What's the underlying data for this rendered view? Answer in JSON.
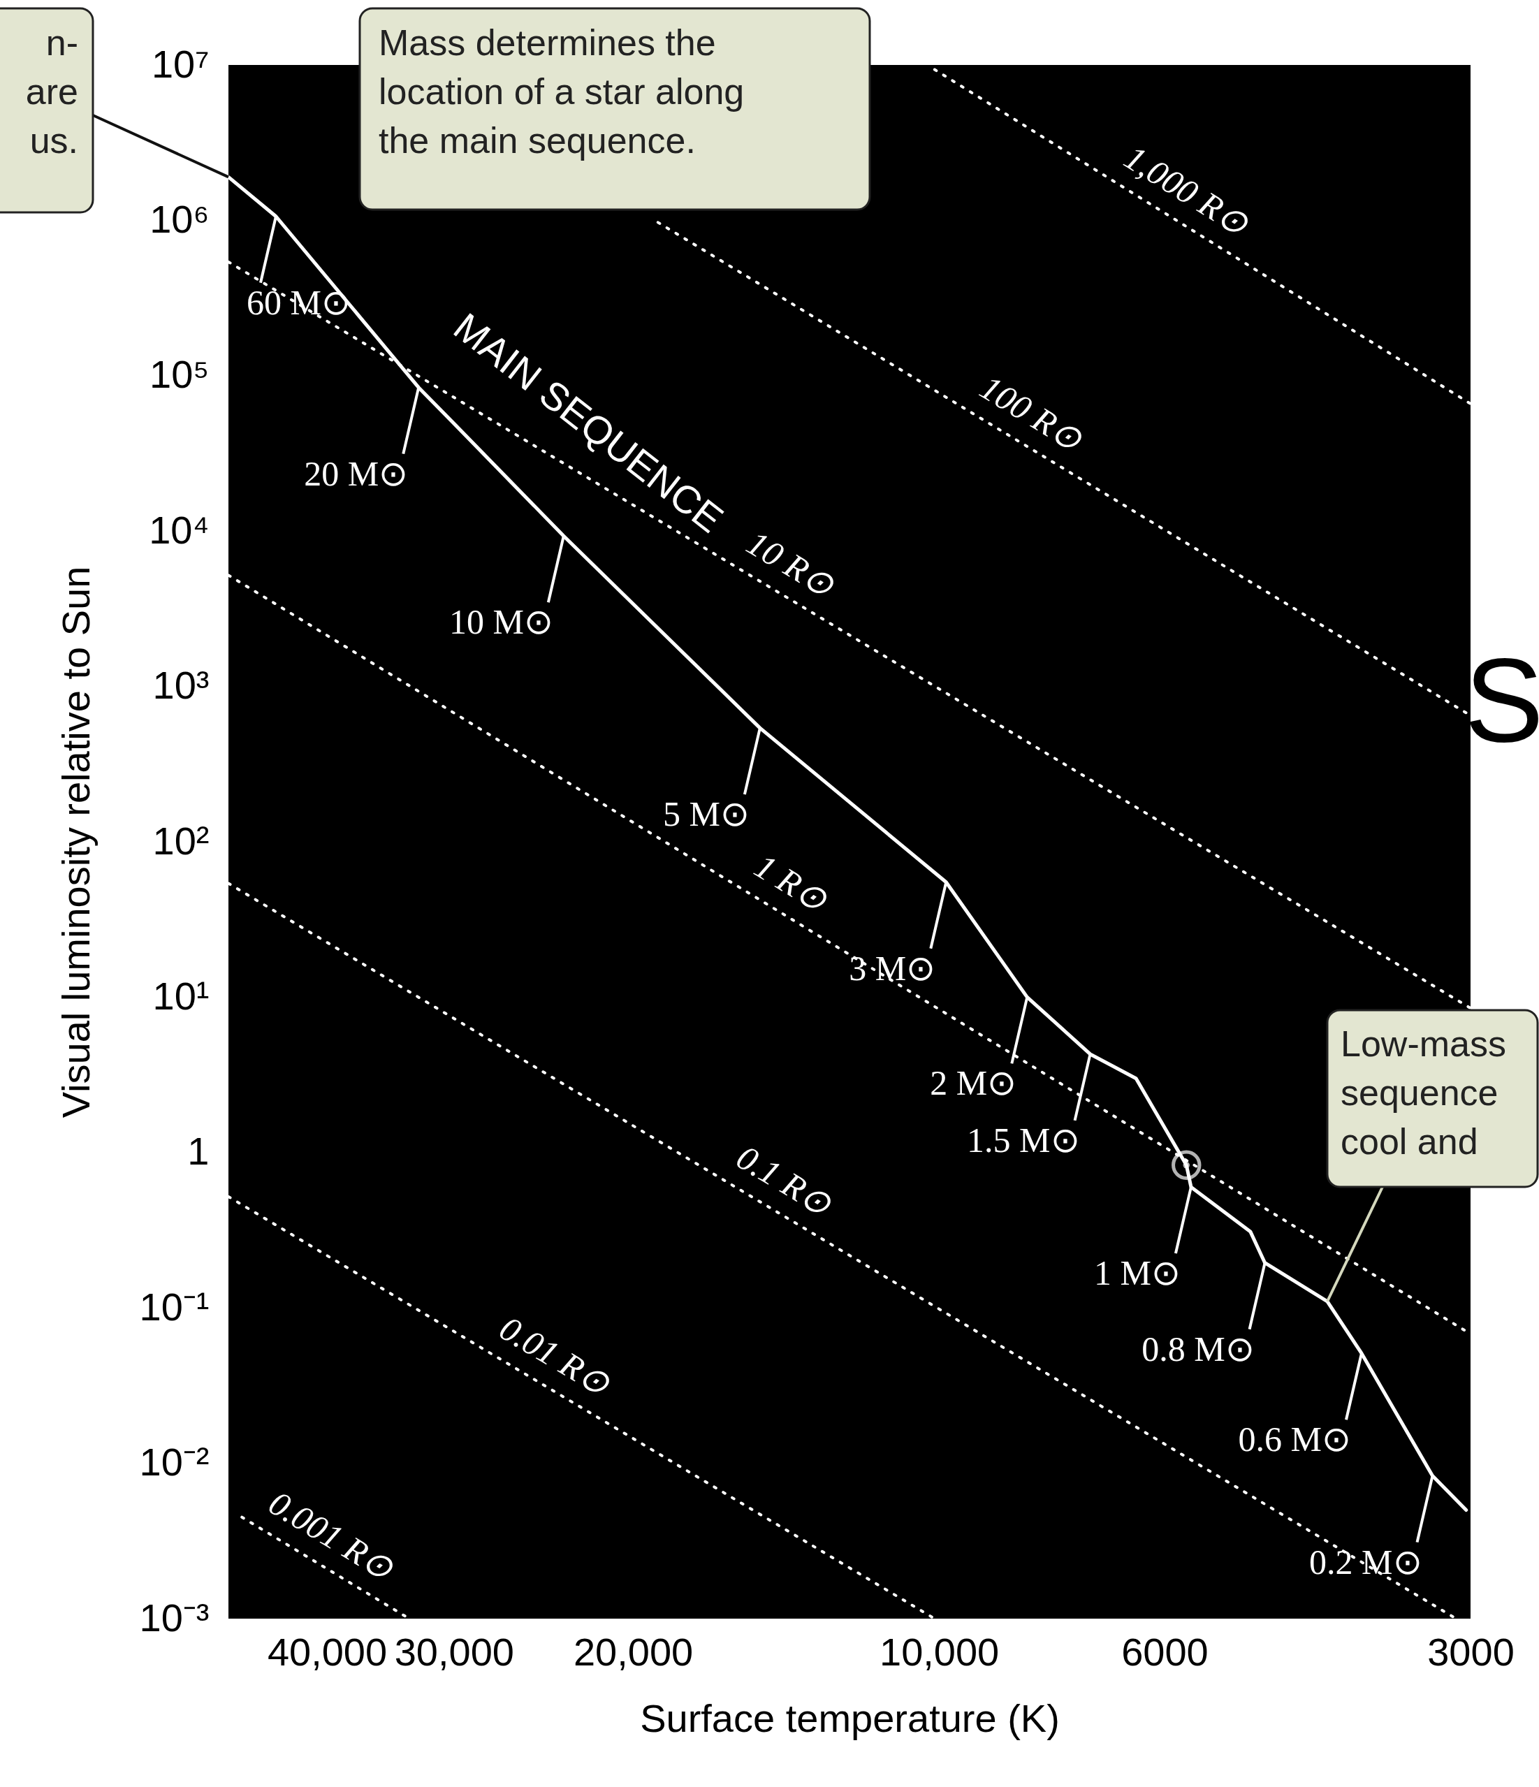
{
  "chart_data": {
    "type": "line",
    "xlabel": "Surface temperature (K)",
    "ylabel": "Visual luminosity relative to Sun",
    "log": "xy",
    "xlim": [
      50000,
      3000
    ],
    "ylim": [
      0.001,
      10000000
    ],
    "xticks": [
      {
        "value": 40000,
        "label": "40,000"
      },
      {
        "value": 30000,
        "label": "30,000"
      },
      {
        "value": 20000,
        "label": "20,000"
      },
      {
        "value": 10000,
        "label": "10,000"
      },
      6000,
      3000
    ],
    "yticks": [
      {
        "value": 0.001,
        "label": "10⁻³"
      },
      {
        "value": 0.01,
        "label": "10⁻²"
      },
      {
        "value": 0.1,
        "label": "10⁻¹"
      },
      1,
      {
        "value": 10,
        "label": "10¹"
      },
      {
        "value": 100,
        "label": "10²"
      },
      {
        "value": 1000,
        "label": "10³"
      },
      {
        "value": 10000,
        "label": "10⁴"
      },
      {
        "value": 100000,
        "label": "10⁵"
      },
      {
        "value": 1000000,
        "label": "10⁶"
      },
      {
        "value": 10000000,
        "label": "10⁷"
      }
    ],
    "grid": false,
    "series": [
      {
        "color": "#ffffff",
        "line_style": "solid",
        "x": [
          50000,
          44900,
          32500,
          29700,
          23400,
          15000,
          9840,
          8190,
          7100,
          6400,
          5710,
          5650,
          4940,
          4780,
          4150,
          3840,
          3270,
          3030
        ],
        "values": [
          1900000,
          1060000,
          84000,
          46000,
          9300,
          540,
          55,
          10,
          4.3,
          3,
          0.83,
          0.6,
          0.31,
          0.195,
          0.11,
          0.051,
          0.0083,
          0.005
        ]
      },
      {
        "type": "scatter",
        "color": "#ffffff",
        "marker": "circle",
        "x": [
          5710
        ],
        "values": [
          0.83
        ]
      },
      {
        "name": "1,000 R⊙",
        "color": "#ffffff",
        "line_style": "dotted",
        "x": [
          10100,
          3000
        ],
        "values": [
          9350000,
          66000
        ]
      },
      {
        "name": "100 R⊙",
        "color": "#ffffff",
        "line_style": "dotted",
        "x": [
          18900,
          3000
        ],
        "values": [
          970000,
          650
        ]
      },
      {
        "name": "10 R⊙",
        "color": "#ffffff",
        "line_style": "dotted",
        "x": [
          50000,
          3000
        ],
        "values": [
          540000,
          8.5
        ]
      },
      {
        "name": "1 R⊙",
        "color": "#ffffff",
        "line_style": "dotted",
        "x": [
          50000,
          3000
        ],
        "values": [
          5200,
          0.068
        ]
      },
      {
        "name": "0.1 R⊙",
        "color": "#ffffff",
        "line_style": "dotted",
        "x": [
          50000,
          3100
        ],
        "values": [
          54,
          0.001
        ]
      },
      {
        "name": "0.01 R⊙",
        "color": "#ffffff",
        "line_style": "dotted",
        "x": [
          50000,
          10100
        ],
        "values": [
          0.52,
          0.001
        ]
      },
      {
        "name": "0.001 R⊙",
        "color": "#ffffff",
        "line_style": "dotted",
        "x": [
          48500,
          33200
        ],
        "values": [
          0.0045,
          0.001
        ]
      }
    ],
    "annotations": [
      {
        "text": "n-\nare\nus.",
        "x": 50000,
        "y": 1900000
      },
      "Mass determines the\nlocation of a star along\nthe main sequence.",
      "MAIN SEQUENCE",
      {
        "text": "Low-mass\nsequence\ncool and",
        "x": 4150,
        "y": 0.11
      },
      "S",
      {
        "text": "60 M⊙",
        "x": 44900,
        "y": 1060000
      },
      {
        "text": "20 M⊙",
        "x": 32500,
        "y": 84000
      },
      {
        "text": "10 M⊙",
        "x": 23400,
        "y": 9300
      },
      {
        "text": "5 M⊙",
        "x": 15000,
        "y": 540
      },
      {
        "text": "3 M⊙",
        "x": 9840,
        "y": 55
      },
      {
        "text": "2 M⊙",
        "x": 8190,
        "y": 10
      },
      {
        "text": "1.5 M⊙",
        "x": 7100,
        "y": 4.3
      },
      {
        "text": "1 M⊙",
        "x": 5650,
        "y": 0.6
      },
      {
        "text": "0.8 M⊙",
        "x": 4780,
        "y": 0.195
      },
      {
        "text": "0.6 M⊙",
        "x": 3840,
        "y": 0.051
      },
      {
        "text": "0.2 M⊙",
        "x": 3270,
        "y": 0.0083
      }
    ]
  }
}
